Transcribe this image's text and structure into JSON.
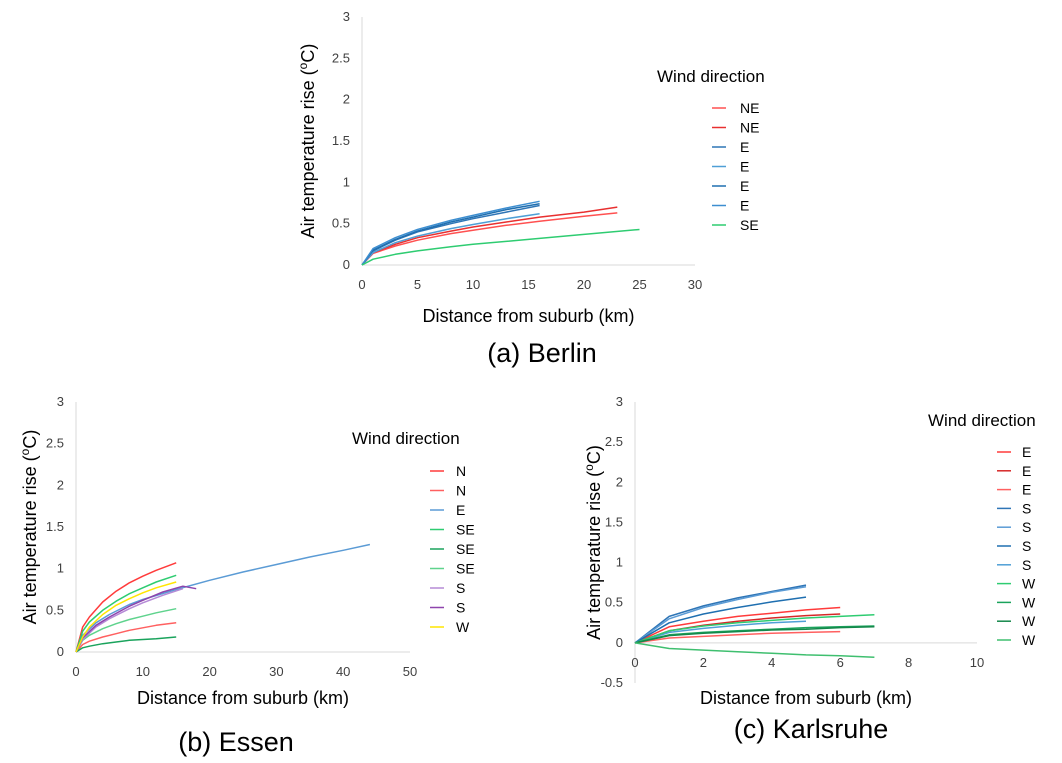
{
  "chart_data": [
    {
      "type": "line",
      "caption": "(a) Berlin",
      "xlabel": "Distance from suburb (km)",
      "ylabel_main": "Air temperature rise (",
      "ylabel_sup": "o",
      "ylabel_tail": "C)",
      "xlim": [
        0,
        30
      ],
      "ylim": [
        0,
        3
      ],
      "xticks": [
        "0",
        "5",
        "10",
        "15",
        "20",
        "25",
        "30"
      ],
      "yticks": [
        "0",
        "0.5",
        "1",
        "1.5",
        "2",
        "2.5",
        "3"
      ],
      "grid": false,
      "legend_title": "Wind direction",
      "series": [
        {
          "name": "NE",
          "color": "#ff5050",
          "points": [
            [
              0,
              0
            ],
            [
              1,
              0.14
            ],
            [
              3,
              0.23
            ],
            [
              5,
              0.3
            ],
            [
              8,
              0.38
            ],
            [
              10,
              0.42
            ],
            [
              13,
              0.48
            ],
            [
              16,
              0.53
            ],
            [
              20,
              0.59
            ],
            [
              23,
              0.63
            ]
          ]
        },
        {
          "name": "NE",
          "color": "#e83030",
          "points": [
            [
              0,
              0
            ],
            [
              1,
              0.15
            ],
            [
              3,
              0.25
            ],
            [
              5,
              0.33
            ],
            [
              8,
              0.41
            ],
            [
              10,
              0.46
            ],
            [
              13,
              0.52
            ],
            [
              16,
              0.58
            ],
            [
              20,
              0.64
            ],
            [
              23,
              0.7
            ]
          ]
        },
        {
          "name": "E",
          "color": "#2e75b6",
          "points": [
            [
              0,
              0
            ],
            [
              1,
              0.17
            ],
            [
              3,
              0.3
            ],
            [
              5,
              0.4
            ],
            [
              8,
              0.5
            ],
            [
              10,
              0.56
            ],
            [
              13,
              0.64
            ],
            [
              16,
              0.72
            ]
          ]
        },
        {
          "name": "E",
          "color": "#4f9fd6",
          "points": [
            [
              0,
              0
            ],
            [
              1,
              0.15
            ],
            [
              3,
              0.27
            ],
            [
              5,
              0.35
            ],
            [
              8,
              0.44
            ],
            [
              10,
              0.49
            ],
            [
              13,
              0.56
            ],
            [
              16,
              0.62
            ]
          ]
        },
        {
          "name": "E",
          "color": "#1f6fb0",
          "points": [
            [
              0,
              0
            ],
            [
              1,
              0.18
            ],
            [
              3,
              0.31
            ],
            [
              5,
              0.41
            ],
            [
              8,
              0.52
            ],
            [
              10,
              0.58
            ],
            [
              13,
              0.67
            ],
            [
              16,
              0.74
            ]
          ]
        },
        {
          "name": "E",
          "color": "#3d8ed0",
          "points": [
            [
              0,
              0
            ],
            [
              1,
              0.2
            ],
            [
              3,
              0.33
            ],
            [
              5,
              0.43
            ],
            [
              8,
              0.54
            ],
            [
              10,
              0.6
            ],
            [
              13,
              0.69
            ],
            [
              16,
              0.77
            ]
          ]
        },
        {
          "name": "SE",
          "color": "#2ecc71",
          "points": [
            [
              0,
              0
            ],
            [
              1,
              0.07
            ],
            [
              3,
              0.13
            ],
            [
              5,
              0.17
            ],
            [
              8,
              0.22
            ],
            [
              10,
              0.25
            ],
            [
              15,
              0.31
            ],
            [
              20,
              0.37
            ],
            [
              25,
              0.43
            ]
          ]
        }
      ]
    },
    {
      "type": "line",
      "caption": "(b) Essen",
      "xlabel": "Distance from suburb (km)",
      "ylabel_main": "Air temperature rise (",
      "ylabel_sup": "o",
      "ylabel_tail": "C)",
      "xlim": [
        0,
        50
      ],
      "ylim": [
        0,
        3
      ],
      "xticks": [
        "0",
        "10",
        "20",
        "30",
        "40",
        "50"
      ],
      "yticks": [
        "0",
        "0.5",
        "1",
        "1.5",
        "2",
        "2.5",
        "3"
      ],
      "grid": false,
      "legend_title": "Wind direction",
      "series": [
        {
          "name": "N",
          "color": "#ff3b3b",
          "points": [
            [
              0,
              0
            ],
            [
              1,
              0.3
            ],
            [
              2,
              0.42
            ],
            [
              4,
              0.6
            ],
            [
              6,
              0.73
            ],
            [
              8,
              0.83
            ],
            [
              10,
              0.91
            ],
            [
              12,
              0.98
            ],
            [
              15,
              1.07
            ]
          ]
        },
        {
          "name": "N",
          "color": "#ff6060",
          "points": [
            [
              0,
              0
            ],
            [
              1,
              0.09
            ],
            [
              2,
              0.13
            ],
            [
              4,
              0.18
            ],
            [
              6,
              0.22
            ],
            [
              8,
              0.26
            ],
            [
              10,
              0.29
            ],
            [
              12,
              0.32
            ],
            [
              15,
              0.35
            ]
          ]
        },
        {
          "name": "E",
          "color": "#5b9bd5",
          "points": [
            [
              0,
              0
            ],
            [
              1,
              0.2
            ],
            [
              3,
              0.35
            ],
            [
              5,
              0.45
            ],
            [
              8,
              0.57
            ],
            [
              10,
              0.63
            ],
            [
              15,
              0.75
            ],
            [
              20,
              0.86
            ],
            [
              25,
              0.96
            ],
            [
              30,
              1.05
            ],
            [
              35,
              1.14
            ],
            [
              40,
              1.22
            ],
            [
              44,
              1.29
            ]
          ]
        },
        {
          "name": "SE",
          "color": "#2ecc71",
          "points": [
            [
              0,
              0
            ],
            [
              1,
              0.25
            ],
            [
              2,
              0.36
            ],
            [
              4,
              0.5
            ],
            [
              6,
              0.61
            ],
            [
              8,
              0.7
            ],
            [
              10,
              0.77
            ],
            [
              12,
              0.84
            ],
            [
              15,
              0.92
            ]
          ]
        },
        {
          "name": "SE",
          "color": "#1aa35c",
          "points": [
            [
              0,
              0
            ],
            [
              1,
              0.05
            ],
            [
              2,
              0.07
            ],
            [
              4,
              0.1
            ],
            [
              6,
              0.12
            ],
            [
              8,
              0.14
            ],
            [
              10,
              0.15
            ],
            [
              12,
              0.16
            ],
            [
              15,
              0.18
            ]
          ]
        },
        {
          "name": "SE",
          "color": "#5fd38d",
          "points": [
            [
              0,
              0
            ],
            [
              1,
              0.14
            ],
            [
              2,
              0.2
            ],
            [
              4,
              0.28
            ],
            [
              6,
              0.34
            ],
            [
              8,
              0.39
            ],
            [
              10,
              0.43
            ],
            [
              12,
              0.47
            ],
            [
              15,
              0.52
            ]
          ]
        },
        {
          "name": "S",
          "color": "#b58ad6",
          "points": [
            [
              0,
              0
            ],
            [
              1,
              0.15
            ],
            [
              3,
              0.3
            ],
            [
              5,
              0.4
            ],
            [
              8,
              0.52
            ],
            [
              10,
              0.59
            ],
            [
              13,
              0.68
            ],
            [
              16,
              0.76
            ]
          ]
        },
        {
          "name": "S",
          "color": "#8e44ad",
          "points": [
            [
              0,
              0
            ],
            [
              1,
              0.17
            ],
            [
              3,
              0.32
            ],
            [
              5,
              0.42
            ],
            [
              8,
              0.55
            ],
            [
              10,
              0.62
            ],
            [
              13,
              0.72
            ],
            [
              16,
              0.79
            ],
            [
              18,
              0.76
            ]
          ]
        },
        {
          "name": "W",
          "color": "#ffe600",
          "points": [
            [
              0,
              0
            ],
            [
              1,
              0.18
            ],
            [
              2,
              0.3
            ],
            [
              4,
              0.45
            ],
            [
              6,
              0.56
            ],
            [
              8,
              0.64
            ],
            [
              10,
              0.71
            ],
            [
              12,
              0.77
            ],
            [
              15,
              0.84
            ]
          ]
        }
      ]
    },
    {
      "type": "line",
      "caption": "(c) Karlsruhe",
      "xlabel": "Distance from suburb (km)",
      "ylabel_main": "Air temperature rise (",
      "ylabel_sup": "o",
      "ylabel_tail": "C)",
      "xlim": [
        0,
        10
      ],
      "ylim": [
        -0.5,
        3
      ],
      "xticks": [
        "0",
        "2",
        "4",
        "6",
        "8",
        "10"
      ],
      "yticks": [
        "-0.5",
        "0",
        "0.5",
        "1",
        "1.5",
        "2",
        "2.5",
        "3"
      ],
      "grid": false,
      "legend_title": "Wind direction",
      "series": [
        {
          "name": "E",
          "color": "#ff3b3b",
          "points": [
            [
              0,
              0
            ],
            [
              1,
              0.2
            ],
            [
              2,
              0.27
            ],
            [
              3,
              0.33
            ],
            [
              4,
              0.37
            ],
            [
              5,
              0.41
            ],
            [
              6,
              0.44
            ]
          ]
        },
        {
          "name": "E",
          "color": "#d62828",
          "points": [
            [
              0,
              0
            ],
            [
              1,
              0.15
            ],
            [
              2,
              0.22
            ],
            [
              3,
              0.27
            ],
            [
              4,
              0.31
            ],
            [
              5,
              0.34
            ],
            [
              6,
              0.36
            ]
          ]
        },
        {
          "name": "E",
          "color": "#ff6060",
          "points": [
            [
              0,
              0
            ],
            [
              1,
              0.06
            ],
            [
              2,
              0.08
            ],
            [
              3,
              0.1
            ],
            [
              4,
              0.12
            ],
            [
              5,
              0.13
            ],
            [
              6,
              0.14
            ]
          ]
        },
        {
          "name": "S",
          "color": "#2e75b6",
          "points": [
            [
              0,
              0
            ],
            [
              1,
              0.33
            ],
            [
              2,
              0.46
            ],
            [
              3,
              0.56
            ],
            [
              4,
              0.64
            ],
            [
              5,
              0.72
            ]
          ]
        },
        {
          "name": "S",
          "color": "#5b9bd5",
          "points": [
            [
              0,
              0
            ],
            [
              1,
              0.3
            ],
            [
              2,
              0.44
            ],
            [
              3,
              0.54
            ],
            [
              4,
              0.63
            ],
            [
              5,
              0.7
            ]
          ]
        },
        {
          "name": "S",
          "color": "#1f6fb0",
          "points": [
            [
              0,
              0
            ],
            [
              1,
              0.25
            ],
            [
              2,
              0.36
            ],
            [
              3,
              0.44
            ],
            [
              4,
              0.51
            ],
            [
              5,
              0.57
            ]
          ]
        },
        {
          "name": "S",
          "color": "#4f9fd6",
          "points": [
            [
              0,
              0
            ],
            [
              1,
              0.13
            ],
            [
              2,
              0.18
            ],
            [
              3,
              0.22
            ],
            [
              4,
              0.25
            ],
            [
              5,
              0.27
            ]
          ]
        },
        {
          "name": "W",
          "color": "#2ecc71",
          "points": [
            [
              0,
              0
            ],
            [
              1,
              0.15
            ],
            [
              2,
              0.21
            ],
            [
              3,
              0.25
            ],
            [
              4,
              0.28
            ],
            [
              5,
              0.31
            ],
            [
              6,
              0.33
            ],
            [
              7,
              0.35
            ]
          ]
        },
        {
          "name": "W",
          "color": "#1aa35c",
          "points": [
            [
              0,
              0
            ],
            [
              1,
              0.1
            ],
            [
              2,
              0.13
            ],
            [
              3,
              0.15
            ],
            [
              4,
              0.17
            ],
            [
              5,
              0.19
            ],
            [
              6,
              0.2
            ],
            [
              7,
              0.21
            ]
          ]
        },
        {
          "name": "W",
          "color": "#14874a",
          "points": [
            [
              0,
              0
            ],
            [
              1,
              0.09
            ],
            [
              2,
              0.12
            ],
            [
              3,
              0.14
            ],
            [
              4,
              0.16
            ],
            [
              5,
              0.17
            ],
            [
              6,
              0.19
            ],
            [
              7,
              0.2
            ]
          ]
        },
        {
          "name": "W",
          "color": "#3fbf6f",
          "points": [
            [
              0,
              0
            ],
            [
              1,
              -0.07
            ],
            [
              2,
              -0.09
            ],
            [
              3,
              -0.11
            ],
            [
              4,
              -0.13
            ],
            [
              5,
              -0.15
            ],
            [
              6,
              -0.16
            ],
            [
              7,
              -0.18
            ]
          ]
        }
      ]
    }
  ]
}
